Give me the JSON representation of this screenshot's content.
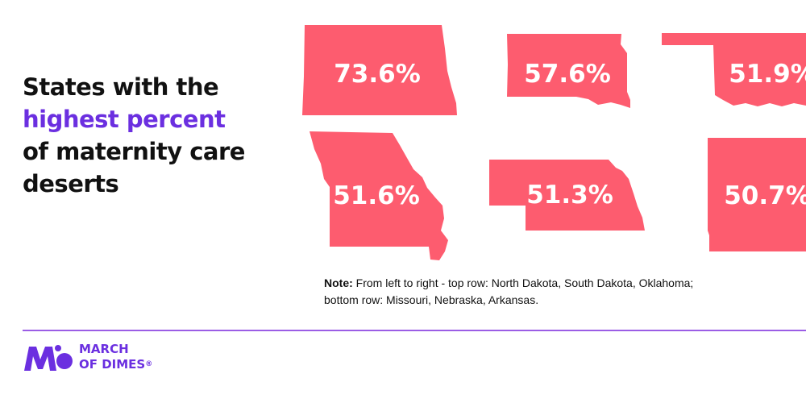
{
  "title": {
    "line1": "States with the",
    "line2": "highest percent",
    "line3": "of maternity care",
    "line4": "deserts"
  },
  "note": {
    "label": "Note:",
    "text_line1": " From left to right - top row: North Dakota, South Dakota, Oklahoma;",
    "text_line2": "bottom row: Missouri, Nebraska, Arkansas."
  },
  "logo": {
    "line1": "MARCH",
    "line2": "OF DIMES",
    "mark": "®"
  },
  "colors": {
    "state_fill": "#fd5c6f",
    "accent": "#6b2fe0",
    "divider": "#9b5de5"
  },
  "chart_data": {
    "type": "table",
    "title": "States with the highest percent of maternity care deserts",
    "rows": [
      {
        "row": "top",
        "items": [
          {
            "state": "North Dakota",
            "value": 73.6,
            "label": "73.6%"
          },
          {
            "state": "South Dakota",
            "value": 57.6,
            "label": "57.6%"
          },
          {
            "state": "Oklahoma",
            "value": 51.9,
            "label": "51.9%"
          }
        ]
      },
      {
        "row": "bottom",
        "items": [
          {
            "state": "Missouri",
            "value": 51.6,
            "label": "51.6%"
          },
          {
            "state": "Nebraska",
            "value": 51.3,
            "label": "51.3%"
          },
          {
            "state": "Arkansas",
            "value": 50.7,
            "label": "50.7%"
          }
        ]
      }
    ]
  }
}
